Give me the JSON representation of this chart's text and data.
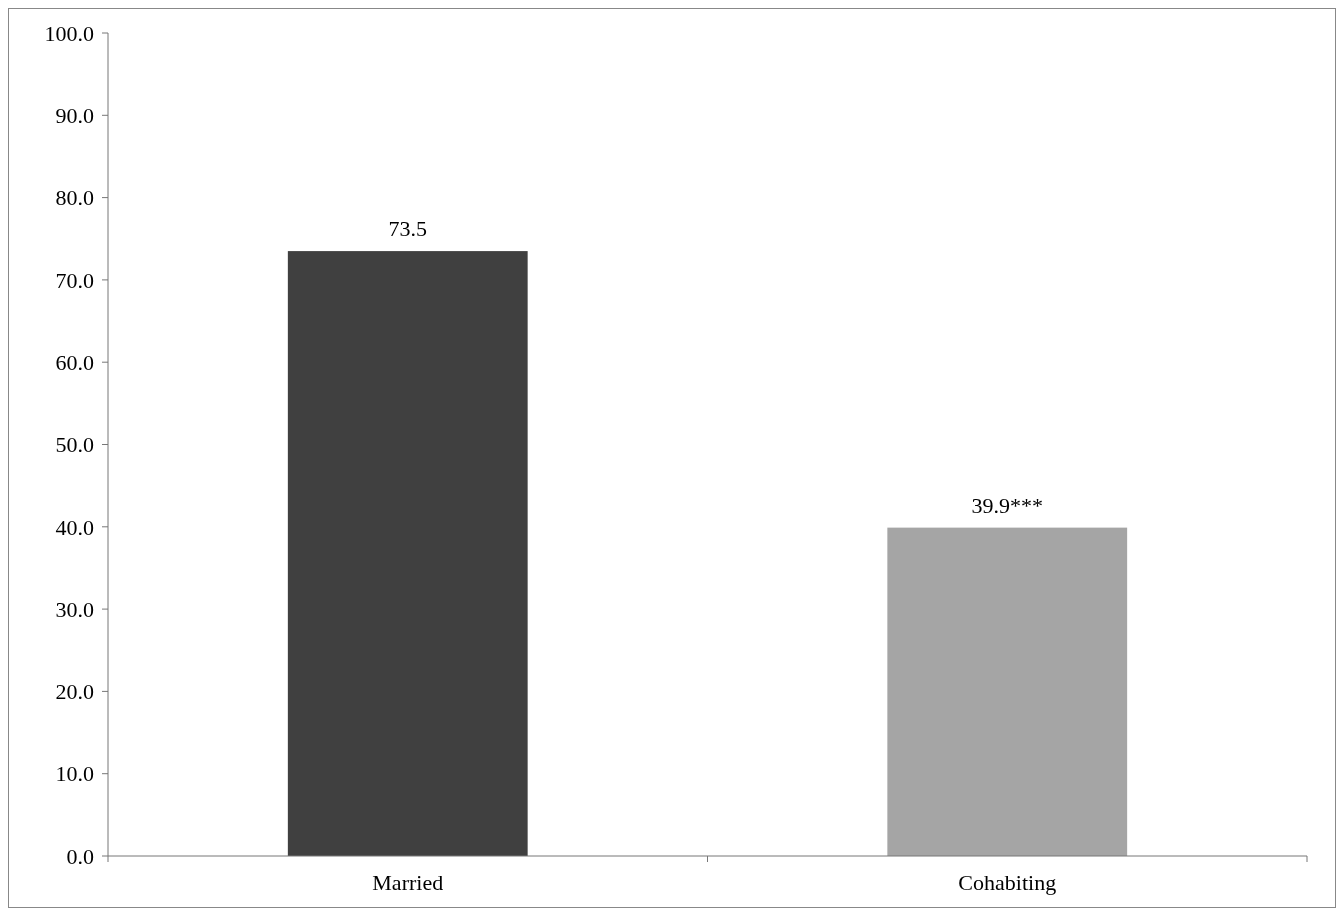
{
  "chart_data": {
    "type": "bar",
    "categories": [
      "Married",
      "Cohabiting"
    ],
    "values": [
      73.5,
      39.9
    ],
    "colors": [
      "#404040",
      "#a5a5a5"
    ],
    "value_labels": [
      "73.5",
      "39.9***"
    ],
    "ylim": [
      0,
      100
    ],
    "yticks": [
      {
        "value": 0,
        "label": "0.0"
      },
      {
        "value": 10,
        "label": "10.0"
      },
      {
        "value": 20,
        "label": "20.0"
      },
      {
        "value": 30,
        "label": "30.0"
      },
      {
        "value": 40,
        "label": "40.0"
      },
      {
        "value": 50,
        "label": "50.0"
      },
      {
        "value": 60,
        "label": "60.0"
      },
      {
        "value": 70,
        "label": "70.0"
      },
      {
        "value": 80,
        "label": "80.0"
      },
      {
        "value": 90,
        "label": "90.0"
      },
      {
        "value": 100,
        "label": "100.0"
      }
    ],
    "grid": false
  }
}
